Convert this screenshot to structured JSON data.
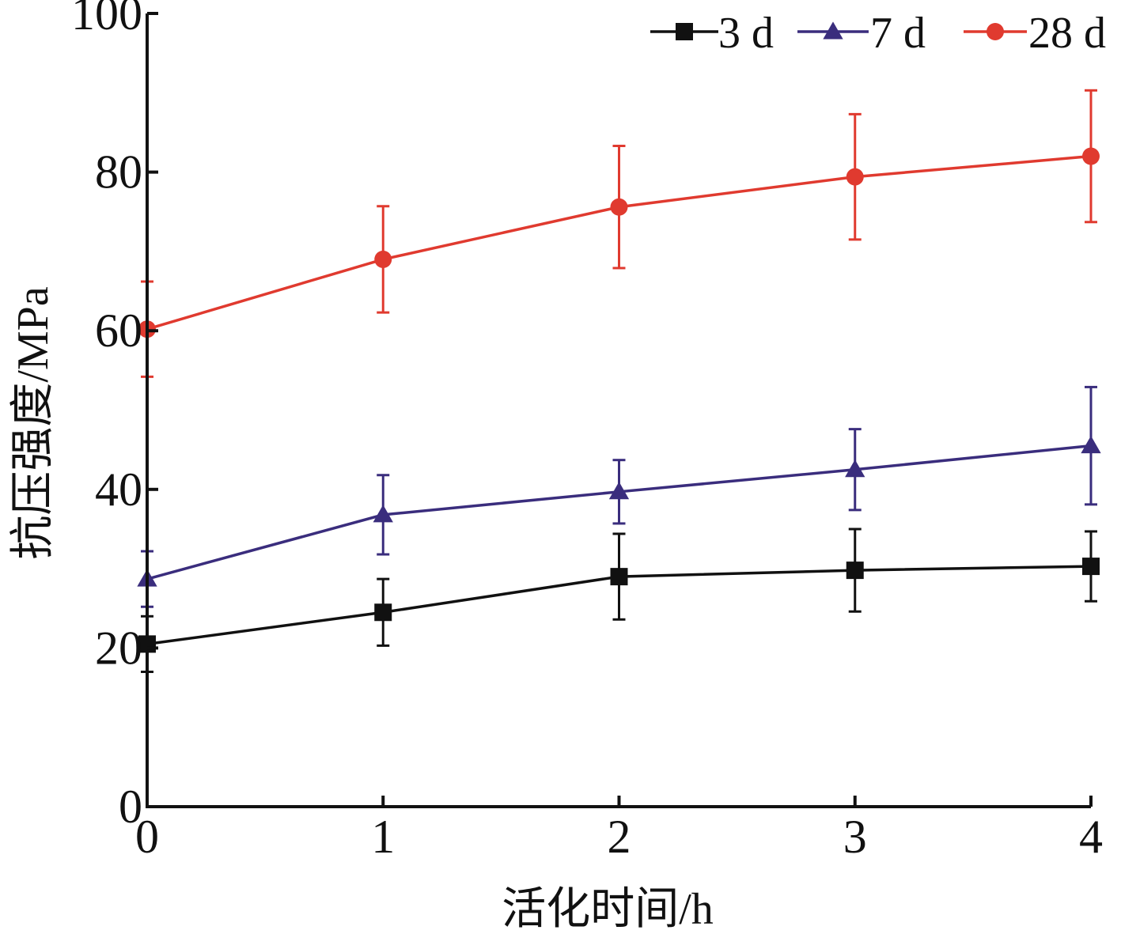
{
  "chart_data": {
    "type": "line",
    "title": "",
    "xlabel": "活化时间/h",
    "ylabel": "抗压强度/MPa",
    "x": [
      0,
      1,
      2,
      3,
      4
    ],
    "x_ticks": [
      "0",
      "1",
      "2",
      "3",
      "4"
    ],
    "y_ticks": [
      "0",
      "20",
      "40",
      "60",
      "80",
      "100"
    ],
    "xlim": [
      0,
      4
    ],
    "ylim": [
      0,
      100
    ],
    "grid": false,
    "legend_position": "top-right",
    "error_bars": true,
    "series": [
      {
        "name": "3 d",
        "color": "#111111",
        "marker": "square",
        "values": [
          20.5,
          24.5,
          29.0,
          29.8,
          30.3
        ],
        "errors": [
          3.5,
          4.2,
          5.4,
          5.2,
          4.4
        ]
      },
      {
        "name": "7 d",
        "color": "#3a2d7d",
        "marker": "triangle",
        "values": [
          28.7,
          36.8,
          39.7,
          42.5,
          45.5
        ],
        "errors": [
          3.5,
          5.0,
          4.0,
          5.1,
          7.4
        ]
      },
      {
        "name": "28 d",
        "color": "#e03a2f",
        "marker": "circle",
        "values": [
          60.2,
          69.0,
          75.6,
          79.4,
          82.0
        ],
        "errors": [
          6.0,
          6.7,
          7.7,
          7.9,
          8.3
        ]
      }
    ]
  }
}
